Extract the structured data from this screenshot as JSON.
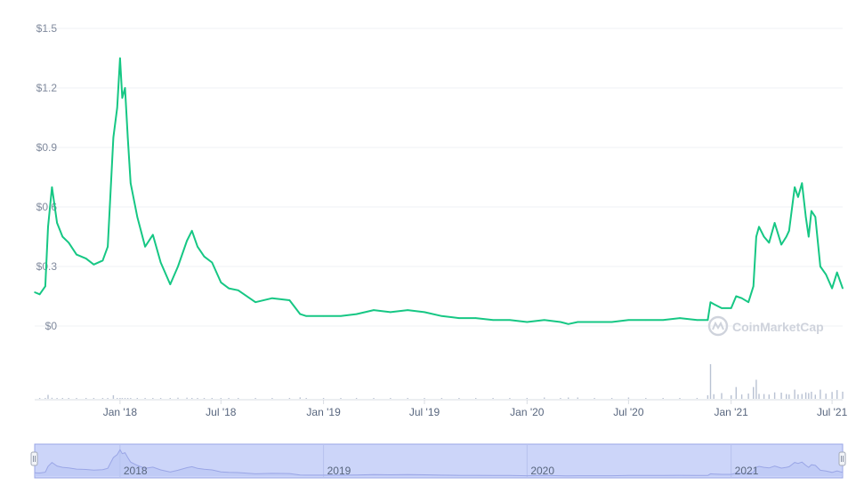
{
  "watermark": "CoinMarketCap",
  "colors": {
    "line": "#16c784",
    "grid": "#eff2f5",
    "volume": "#b9c2d3",
    "navigator_fill": "#ccd5f9",
    "navigator_line": "#9aa6e6"
  },
  "chart_data": {
    "type": "line",
    "title": "",
    "xlabel": "",
    "ylabel": "",
    "y_ticks": [
      "$1.5",
      "$1.2",
      "$0.9",
      "$0.6",
      "$0.3",
      "$0"
    ],
    "y_tick_values": [
      1.5,
      1.2,
      0.9,
      0.6,
      0.3,
      0
    ],
    "ylim": [
      0,
      1.5
    ],
    "x_ticks": [
      "Jan '18",
      "Jul '18",
      "Jan '19",
      "Jul '19",
      "Jan '20",
      "Jul '20",
      "Jan '21",
      "Jul '21"
    ],
    "x_tick_values": [
      "2018-01-01",
      "2018-07-01",
      "2019-01-01",
      "2019-07-01",
      "2020-01-01",
      "2020-07-01",
      "2021-01-01",
      "2021-07-01"
    ],
    "xlim": [
      "2017-08-01",
      "2021-07-20"
    ],
    "grid": true,
    "navigator_labels": [
      "2018",
      "2019",
      "2020",
      "2021"
    ],
    "navigator_label_values": [
      "2018-01-01",
      "2019-01-01",
      "2020-01-01",
      "2021-01-01"
    ],
    "series": [
      {
        "x": [
          "2017-08-01",
          "2017-08-10",
          "2017-08-20",
          "2017-08-25",
          "2017-09-01",
          "2017-09-10",
          "2017-09-20",
          "2017-10-01",
          "2017-10-15",
          "2017-11-01",
          "2017-11-15",
          "2017-12-01",
          "2017-12-10",
          "2017-12-20",
          "2017-12-27",
          "2018-01-01",
          "2018-01-05",
          "2018-01-10",
          "2018-01-15",
          "2018-01-20",
          "2018-02-01",
          "2018-02-15",
          "2018-03-01",
          "2018-03-15",
          "2018-04-01",
          "2018-04-15",
          "2018-05-01",
          "2018-05-10",
          "2018-05-20",
          "2018-06-01",
          "2018-06-15",
          "2018-07-01",
          "2018-07-15",
          "2018-08-01",
          "2018-09-01",
          "2018-10-01",
          "2018-11-01",
          "2018-11-20",
          "2018-12-01",
          "2019-01-01",
          "2019-02-01",
          "2019-03-01",
          "2019-04-01",
          "2019-05-01",
          "2019-06-01",
          "2019-07-01",
          "2019-08-01",
          "2019-09-01",
          "2019-10-01",
          "2019-11-01",
          "2019-12-01",
          "2020-01-01",
          "2020-02-01",
          "2020-03-01",
          "2020-03-15",
          "2020-04-01",
          "2020-05-01",
          "2020-06-01",
          "2020-07-01",
          "2020-08-01",
          "2020-09-01",
          "2020-10-01",
          "2020-11-01",
          "2020-11-20",
          "2020-11-25",
          "2020-12-01",
          "2020-12-15",
          "2021-01-01",
          "2021-01-10",
          "2021-01-20",
          "2021-02-01",
          "2021-02-10",
          "2021-02-15",
          "2021-02-20",
          "2021-03-01",
          "2021-03-10",
          "2021-03-20",
          "2021-04-01",
          "2021-04-10",
          "2021-04-15",
          "2021-04-25",
          "2021-05-01",
          "2021-05-08",
          "2021-05-15",
          "2021-05-20",
          "2021-05-25",
          "2021-06-01",
          "2021-06-10",
          "2021-06-20",
          "2021-07-01",
          "2021-07-10",
          "2021-07-20"
        ],
        "values": [
          0.17,
          0.16,
          0.2,
          0.5,
          0.7,
          0.52,
          0.45,
          0.42,
          0.36,
          0.34,
          0.31,
          0.33,
          0.4,
          0.95,
          1.1,
          1.35,
          1.15,
          1.2,
          0.95,
          0.72,
          0.55,
          0.4,
          0.46,
          0.32,
          0.21,
          0.3,
          0.43,
          0.48,
          0.4,
          0.35,
          0.32,
          0.22,
          0.19,
          0.18,
          0.12,
          0.14,
          0.13,
          0.06,
          0.05,
          0.05,
          0.05,
          0.06,
          0.08,
          0.07,
          0.08,
          0.07,
          0.05,
          0.04,
          0.04,
          0.03,
          0.03,
          0.02,
          0.03,
          0.02,
          0.01,
          0.02,
          0.02,
          0.02,
          0.03,
          0.03,
          0.03,
          0.04,
          0.03,
          0.03,
          0.12,
          0.11,
          0.09,
          0.09,
          0.15,
          0.14,
          0.12,
          0.2,
          0.45,
          0.5,
          0.45,
          0.42,
          0.52,
          0.41,
          0.45,
          0.48,
          0.7,
          0.65,
          0.72,
          0.55,
          0.45,
          0.58,
          0.55,
          0.3,
          0.26,
          0.19,
          0.27,
          0.19
        ]
      }
    ]
  }
}
